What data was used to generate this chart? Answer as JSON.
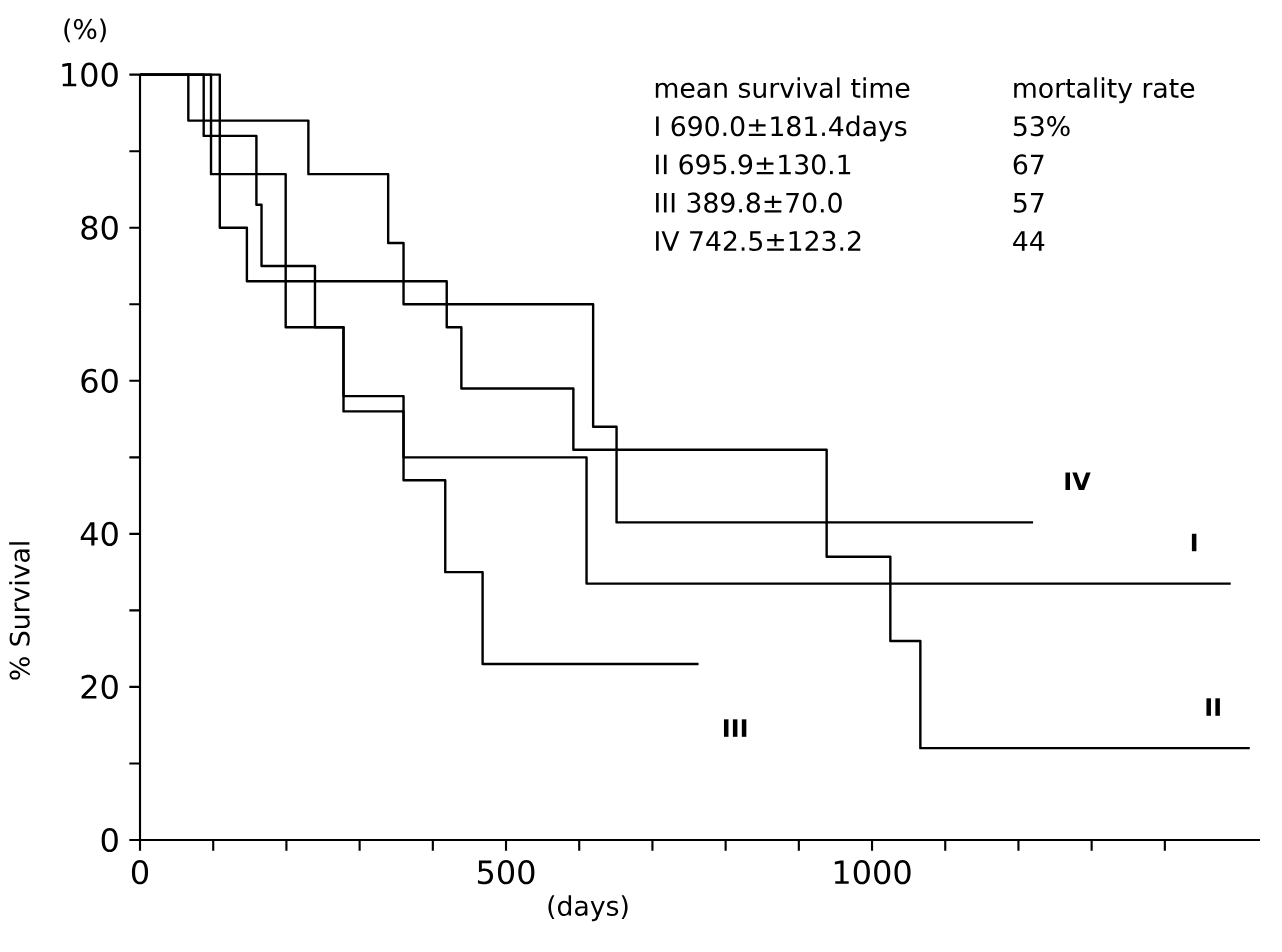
{
  "chart_data": {
    "type": "step",
    "xlabel": "(days)",
    "ylabel": "% Survival",
    "annotations": [
      "(%)",
      "mean survival time",
      "mortality rate",
      "I 690.0±181.4days",
      "53%",
      "II 695.9±130.1",
      "67",
      "III 389.8±70.0",
      "57",
      "IV 742.5±123.2",
      "44"
    ],
    "series": [
      {
        "name": "I",
        "color": "#000000",
        "x": [
          0,
          87,
          159,
          166,
          239,
          278,
          360,
          610,
          1490
        ],
        "values": [
          100,
          92,
          83,
          75,
          67,
          58,
          50,
          33.5,
          33.5
        ]
      },
      {
        "name": "II",
        "color": "#000000",
        "x": [
          0,
          66,
          109,
          146,
          419,
          439,
          592,
          938,
          1025,
          1066,
          1516
        ],
        "values": [
          100,
          94,
          80,
          73,
          67,
          59,
          51,
          37,
          26,
          12,
          12
        ]
      },
      {
        "name": "III",
        "color": "#000000",
        "x": [
          0,
          97,
          199,
          278,
          360,
          417,
          468,
          763
        ],
        "values": [
          100,
          87,
          67,
          56,
          47,
          35,
          23,
          23
        ]
      },
      {
        "name": "IV",
        "color": "#000000",
        "x": [
          0,
          109,
          230,
          339,
          360,
          619,
          651,
          1220
        ],
        "values": [
          100,
          94,
          87,
          78,
          70,
          54,
          41.5,
          41.5
        ]
      }
    ],
    "xlim": [
      0,
      1530
    ],
    "ylim": [
      0,
      100
    ],
    "xticks": [
      0,
      {
        "value": 100,
        "label": null
      },
      {
        "value": 200,
        "label": null
      },
      {
        "value": 300,
        "label": null
      },
      {
        "value": 400,
        "label": null
      },
      500,
      {
        "value": 600,
        "label": null
      },
      {
        "value": 700,
        "label": null
      },
      {
        "value": 800,
        "label": null
      },
      {
        "value": 900,
        "label": null
      },
      1000,
      {
        "value": 1100,
        "label": null
      },
      {
        "value": 1200,
        "label": null
      },
      {
        "value": 1300,
        "label": null
      },
      {
        "value": 1400,
        "label": null
      }
    ],
    "yticks": [
      0,
      {
        "value": 10,
        "label": null
      },
      20,
      {
        "value": 30,
        "label": null
      },
      40,
      {
        "value": 50,
        "label": null
      },
      60,
      {
        "value": 70,
        "label": null
      },
      80,
      {
        "value": 90,
        "label": null
      },
      100
    ],
    "tick_labels": [
      "x",
      "y"
    ]
  }
}
